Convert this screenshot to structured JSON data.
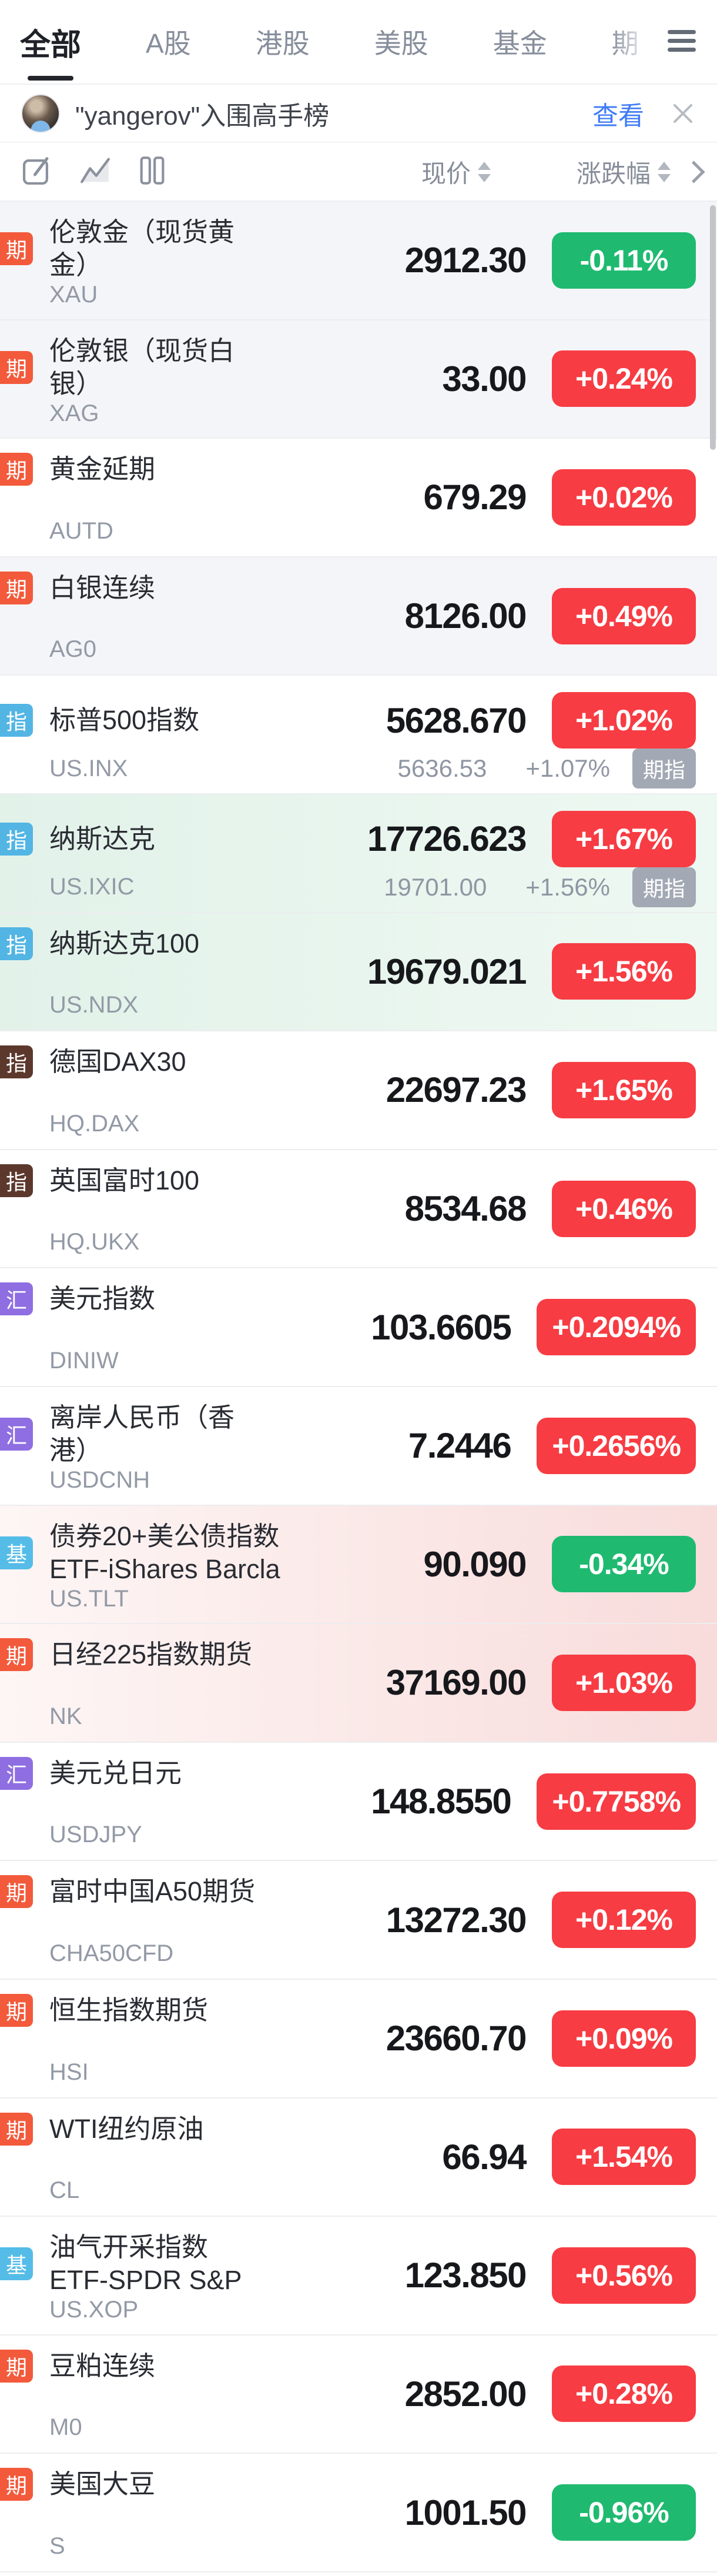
{
  "colors": {
    "up_red": "#f73c43",
    "down_green": "#1fba70",
    "badge_futures": "#f25a3b",
    "badge_index_us": "#52b5e4",
    "badge_index_hq": "#5c382c",
    "badge_fx": "#8f6ee2",
    "badge_fund": "#55bce8",
    "link_blue": "#3f7cf6"
  },
  "icons": {
    "menu": "hamburger-icon",
    "close": "close-icon",
    "edit": "compose-icon",
    "chart": "line-chart-icon",
    "columns": "column-view-icon",
    "sort": "sort-arrows-icon",
    "chevron": "chevron-right-icon"
  },
  "tabs": {
    "items": [
      {
        "key": "all",
        "label": "全部",
        "active": true,
        "faded": false
      },
      {
        "key": "a-shares",
        "label": "A股",
        "active": false,
        "faded": false
      },
      {
        "key": "hk-stocks",
        "label": "港股",
        "active": false,
        "faded": false
      },
      {
        "key": "us-stocks",
        "label": "美股",
        "active": false,
        "faded": false
      },
      {
        "key": "funds",
        "label": "基金",
        "active": false,
        "faded": false
      },
      {
        "key": "futures",
        "label": "期",
        "active": false,
        "faded": true
      }
    ]
  },
  "banner": {
    "title": "\"yangerov\"入围高手榜",
    "action_label": "查看"
  },
  "toolbar": {
    "price_sort_label": "现价",
    "change_sort_label": "涨跌幅"
  },
  "watchlist": [
    {
      "badge": "期",
      "badge_type": "futures",
      "name": "伦敦金（现货黄\n金）",
      "code": "XAU",
      "price": "2912.30",
      "change": "-0.11%",
      "direction": "down",
      "background": "gray"
    },
    {
      "badge": "期",
      "badge_type": "futures",
      "name": "伦敦银（现货白\n银）",
      "code": "XAG",
      "price": "33.00",
      "change": "+0.24%",
      "direction": "up",
      "background": "gray"
    },
    {
      "badge": "期",
      "badge_type": "futures",
      "name": "黄金延期",
      "code": "AUTD",
      "price": "679.29",
      "change": "+0.02%",
      "direction": "up",
      "background": "white"
    },
    {
      "badge": "期",
      "badge_type": "futures",
      "name": "白银连续",
      "code": "AG0",
      "price": "8126.00",
      "change": "+0.49%",
      "direction": "up",
      "background": "gray"
    },
    {
      "badge": "指",
      "badge_type": "index_us",
      "name": "标普500指数",
      "code": "US.INX",
      "price": "5628.670",
      "change": "+1.02%",
      "direction": "up",
      "background": "white",
      "sub": {
        "price": "5636.53",
        "change": "+1.07%",
        "tag": "期指"
      }
    },
    {
      "badge": "指",
      "badge_type": "index_us",
      "name": "纳斯达克",
      "code": "US.IXIC",
      "price": "17726.623",
      "change": "+1.67%",
      "direction": "up",
      "background": "green",
      "sub": {
        "price": "19701.00",
        "change": "+1.56%",
        "tag": "期指"
      }
    },
    {
      "badge": "指",
      "badge_type": "index_us",
      "name": "纳斯达克100",
      "code": "US.NDX",
      "price": "19679.021",
      "change": "+1.56%",
      "direction": "up",
      "background": "green"
    },
    {
      "badge": "指",
      "badge_type": "index_hq",
      "name": "德国DAX30",
      "code": "HQ.DAX",
      "price": "22697.23",
      "change": "+1.65%",
      "direction": "up",
      "background": "white"
    },
    {
      "badge": "指",
      "badge_type": "index_hq",
      "name": "英国富时100",
      "code": "HQ.UKX",
      "price": "8534.68",
      "change": "+0.46%",
      "direction": "up",
      "background": "white"
    },
    {
      "badge": "汇",
      "badge_type": "fx",
      "name": "美元指数",
      "code": "DINIW",
      "price": "103.6605",
      "change": "+0.2094%",
      "direction": "up",
      "background": "white"
    },
    {
      "badge": "汇",
      "badge_type": "fx",
      "name": "离岸人民币（香\n港）",
      "code": "USDCNH",
      "price": "7.2446",
      "change": "+0.2656%",
      "direction": "up",
      "background": "white"
    },
    {
      "badge": "基",
      "badge_type": "fund",
      "name": "债券20+美公债指数\nETF-iShares Barcla",
      "code": "US.TLT",
      "price": "90.090",
      "change": "-0.34%",
      "direction": "down",
      "background": "red"
    },
    {
      "badge": "期",
      "badge_type": "futures",
      "name": "日经225指数期货",
      "code": "NK",
      "price": "37169.00",
      "change": "+1.03%",
      "direction": "up",
      "background": "red"
    },
    {
      "badge": "汇",
      "badge_type": "fx",
      "name": "美元兑日元",
      "code": "USDJPY",
      "price": "148.8550",
      "change": "+0.7758%",
      "direction": "up",
      "background": "white"
    },
    {
      "badge": "期",
      "badge_type": "futures",
      "name": "富时中国A50期货",
      "code": "CHA50CFD",
      "price": "13272.30",
      "change": "+0.12%",
      "direction": "up",
      "background": "white"
    },
    {
      "badge": "期",
      "badge_type": "futures",
      "name": "恒生指数期货",
      "code": "HSI",
      "price": "23660.70",
      "change": "+0.09%",
      "direction": "up",
      "background": "white"
    },
    {
      "badge": "期",
      "badge_type": "futures",
      "name": "WTI纽约原油",
      "code": "CL",
      "price": "66.94",
      "change": "+1.54%",
      "direction": "up",
      "background": "white"
    },
    {
      "badge": "基",
      "badge_type": "fund",
      "name": "油气开采指数\nETF-SPDR S&P",
      "code": "US.XOP",
      "price": "123.850",
      "change": "+0.56%",
      "direction": "up",
      "background": "white"
    },
    {
      "badge": "期",
      "badge_type": "futures",
      "name": "豆粕连续",
      "code": "M0",
      "price": "2852.00",
      "change": "+0.28%",
      "direction": "up",
      "background": "white"
    },
    {
      "badge": "期",
      "badge_type": "futures",
      "name": "美国大豆",
      "code": "S",
      "price": "1001.50",
      "change": "-0.96%",
      "direction": "down",
      "background": "white"
    }
  ]
}
